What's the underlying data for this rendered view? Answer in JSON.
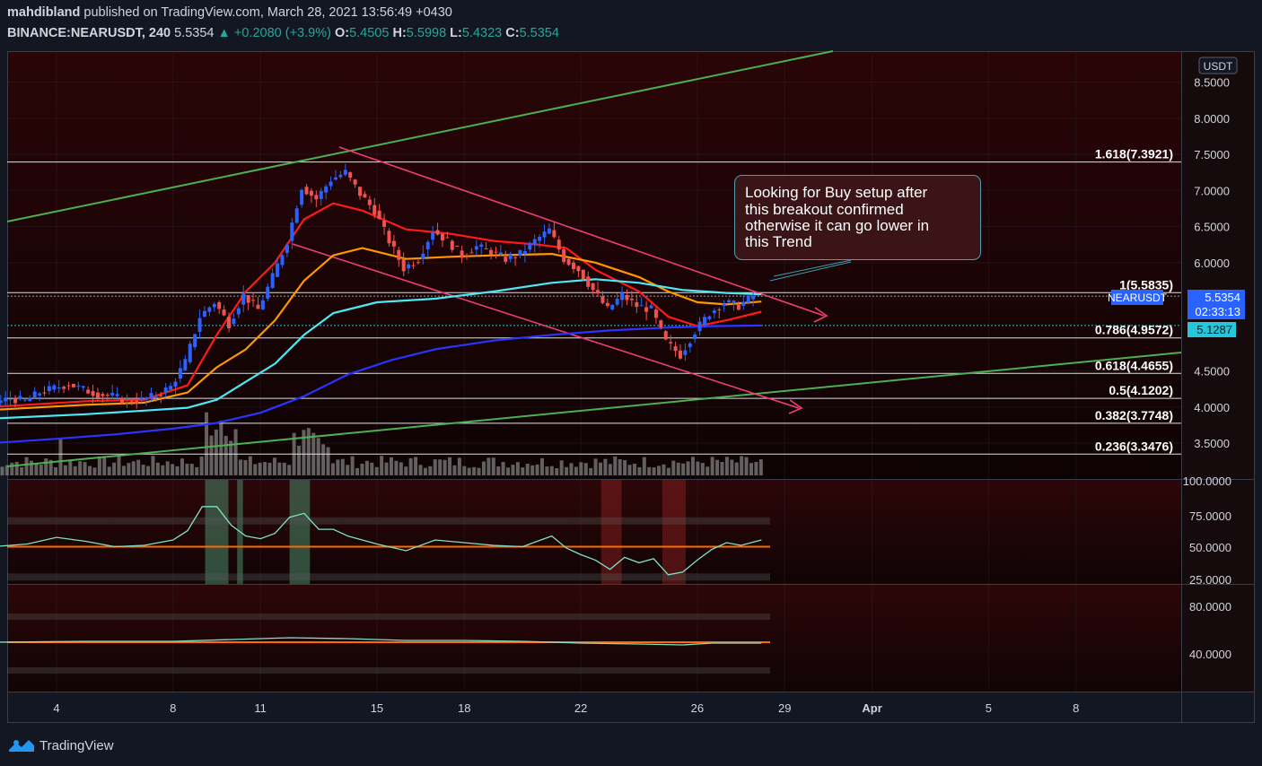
{
  "header": {
    "author": "mahdibland",
    "published_text": "published on TradingView.com, March 28, 2021 13:56:49 +0430",
    "symbol": "BINANCE:NEARUSDT, 240",
    "last": "5.5354",
    "change": "+0.2080 (+3.9%)",
    "o_label": "O:",
    "o": "5.4505",
    "h_label": "H:",
    "h": "5.5998",
    "l_label": "L:",
    "l": "5.4323",
    "c_label": "C:",
    "c": "5.5354"
  },
  "footer": {
    "brand": "TradingView"
  },
  "colors": {
    "background": "#131722",
    "price_pane_bg": "#2a0a0c",
    "up_candle": "#2962ff",
    "down_candle": "#ef5350",
    "ema_red": "#ff1a1a",
    "ema_orange": "#ff9800",
    "ema_cyan": "#4de8f5",
    "ema_blue": "#2b33ff",
    "trendline_green": "#4caf50",
    "channel_pink": "#f23b7a",
    "rsi_line": "#80e0c8",
    "mid_line": "#ff6a00"
  },
  "annotation": {
    "text_lines": [
      "Looking for Buy setup after",
      "this breakout confirmed",
      "otherwise it can go lower in",
      "this Trend"
    ]
  },
  "chart_data": {
    "type": "candlestick",
    "symbol": "NEARUSDT",
    "interval": "240",
    "price_axis": {
      "unit": "USDT",
      "ylim": [
        3.2,
        8.85
      ],
      "ticks": [
        "8.5000",
        "8.0000",
        "7.5000",
        "7.0000",
        "6.5000",
        "6.0000",
        "4.5000",
        "4.0000",
        "3.5000"
      ],
      "tick_values": [
        8.5,
        8.0,
        7.5,
        7.0,
        6.5,
        6.0,
        4.5,
        4.0,
        3.5
      ]
    },
    "x_axis": {
      "ticks": [
        "4",
        "8",
        "11",
        "15",
        "18",
        "22",
        "26",
        "29",
        "Apr",
        "5",
        "8"
      ],
      "tick_days": [
        4,
        8,
        11,
        15,
        18,
        22,
        26,
        29,
        32,
        36,
        39
      ]
    },
    "price_labels": [
      {
        "text": "NEARUSDT",
        "value": "5.5354",
        "countdown": "02:33:13",
        "price": 5.5354
      },
      {
        "text": "5.1287",
        "price": 5.1287
      }
    ],
    "fibonacci": [
      {
        "label": "1.618(7.3921)",
        "price": 7.3921
      },
      {
        "label": "1(5.5835)",
        "price": 5.5835
      },
      {
        "label": "0.786(4.9572)",
        "price": 4.9572
      },
      {
        "label": "0.618(4.4655)",
        "price": 4.4655
      },
      {
        "label": "0.5(4.1202)",
        "price": 4.1202
      },
      {
        "label": "0.382(3.7748)",
        "price": 3.7748
      },
      {
        "label": "0.236(3.3476)",
        "price": 3.3476
      }
    ],
    "candles": [
      {
        "day": 2.0,
        "close": 4.06
      },
      {
        "day": 2.5,
        "close": 4.12
      },
      {
        "day": 3.0,
        "close": 4.08
      },
      {
        "day": 3.5,
        "close": 4.2
      },
      {
        "day": 4.0,
        "close": 4.26
      },
      {
        "day": 4.5,
        "close": 4.32
      },
      {
        "day": 5.0,
        "close": 4.24
      },
      {
        "day": 5.5,
        "close": 4.18
      },
      {
        "day": 6.0,
        "close": 4.15
      },
      {
        "day": 6.5,
        "close": 4.08
      },
      {
        "day": 7.0,
        "close": 4.1
      },
      {
        "day": 7.5,
        "close": 4.16
      },
      {
        "day": 8.0,
        "close": 4.28
      },
      {
        "day": 8.5,
        "close": 4.62
      },
      {
        "day": 9.0,
        "close": 5.25
      },
      {
        "day": 9.5,
        "close": 5.45
      },
      {
        "day": 10.0,
        "close": 5.15
      },
      {
        "day": 10.5,
        "close": 5.55
      },
      {
        "day": 11.0,
        "close": 5.35
      },
      {
        "day": 11.5,
        "close": 5.8
      },
      {
        "day": 12.0,
        "close": 6.3
      },
      {
        "day": 12.5,
        "close": 7.05
      },
      {
        "day": 13.0,
        "close": 6.88
      },
      {
        "day": 13.5,
        "close": 7.15
      },
      {
        "day": 14.0,
        "close": 7.25
      },
      {
        "day": 14.5,
        "close": 6.95
      },
      {
        "day": 15.0,
        "close": 6.72
      },
      {
        "day": 15.5,
        "close": 6.3
      },
      {
        "day": 16.0,
        "close": 5.92
      },
      {
        "day": 16.5,
        "close": 6.05
      },
      {
        "day": 17.0,
        "close": 6.45
      },
      {
        "day": 17.5,
        "close": 6.3
      },
      {
        "day": 18.0,
        "close": 6.1
      },
      {
        "day": 18.5,
        "close": 6.22
      },
      {
        "day": 19.0,
        "close": 6.15
      },
      {
        "day": 19.5,
        "close": 6.05
      },
      {
        "day": 20.0,
        "close": 6.12
      },
      {
        "day": 20.5,
        "close": 6.3
      },
      {
        "day": 21.0,
        "close": 6.45
      },
      {
        "day": 21.5,
        "close": 6.05
      },
      {
        "day": 22.0,
        "close": 5.9
      },
      {
        "day": 22.5,
        "close": 5.62
      },
      {
        "day": 23.0,
        "close": 5.35
      },
      {
        "day": 23.5,
        "close": 5.55
      },
      {
        "day": 24.0,
        "close": 5.4
      },
      {
        "day": 24.5,
        "close": 5.35
      },
      {
        "day": 25.0,
        "close": 4.9
      },
      {
        "day": 25.5,
        "close": 4.72
      },
      {
        "day": 26.0,
        "close": 5.05
      },
      {
        "day": 26.5,
        "close": 5.3
      },
      {
        "day": 27.0,
        "close": 5.45
      },
      {
        "day": 27.5,
        "close": 5.4
      },
      {
        "day": 28.0,
        "close": 5.5354
      }
    ],
    "moving_averages": [
      {
        "color": "ema_red",
        "points": [
          [
            1.8,
            4.0
          ],
          [
            5,
            4.08
          ],
          [
            7,
            4.1
          ],
          [
            8.5,
            4.3
          ],
          [
            9.5,
            5.0
          ],
          [
            10.5,
            5.6
          ],
          [
            11.5,
            6.0
          ],
          [
            12.5,
            6.6
          ],
          [
            13.5,
            6.82
          ],
          [
            14.5,
            6.72
          ],
          [
            16,
            6.46
          ],
          [
            17.5,
            6.4
          ],
          [
            19,
            6.3
          ],
          [
            20.5,
            6.25
          ],
          [
            21.5,
            6.2
          ],
          [
            22.5,
            5.9
          ],
          [
            24,
            5.6
          ],
          [
            25,
            5.25
          ],
          [
            26,
            5.12
          ],
          [
            27,
            5.2
          ],
          [
            28.2,
            5.32
          ]
        ]
      },
      {
        "color": "ema_orange",
        "points": [
          [
            1.8,
            3.96
          ],
          [
            5,
            4.03
          ],
          [
            7,
            4.06
          ],
          [
            8.5,
            4.2
          ],
          [
            9.5,
            4.55
          ],
          [
            10.5,
            4.8
          ],
          [
            11.5,
            5.2
          ],
          [
            12.5,
            5.75
          ],
          [
            13.5,
            6.1
          ],
          [
            14.5,
            6.2
          ],
          [
            16,
            6.05
          ],
          [
            17.5,
            6.08
          ],
          [
            19,
            6.1
          ],
          [
            21,
            6.12
          ],
          [
            22.5,
            6.0
          ],
          [
            24,
            5.8
          ],
          [
            25,
            5.6
          ],
          [
            26,
            5.45
          ],
          [
            27,
            5.42
          ],
          [
            28.2,
            5.46
          ]
        ]
      },
      {
        "color": "ema_cyan",
        "points": [
          [
            1.8,
            3.84
          ],
          [
            5,
            3.9
          ],
          [
            7,
            3.95
          ],
          [
            8.5,
            3.99
          ],
          [
            9.5,
            4.1
          ],
          [
            10.5,
            4.35
          ],
          [
            11.5,
            4.6
          ],
          [
            12.5,
            5.0
          ],
          [
            13.5,
            5.3
          ],
          [
            15,
            5.45
          ],
          [
            17,
            5.5
          ],
          [
            19,
            5.6
          ],
          [
            21,
            5.72
          ],
          [
            22.5,
            5.77
          ],
          [
            24,
            5.72
          ],
          [
            25.5,
            5.62
          ],
          [
            27,
            5.58
          ],
          [
            28.2,
            5.56
          ]
        ]
      },
      {
        "color": "ema_blue",
        "points": [
          [
            1.8,
            3.5
          ],
          [
            4,
            3.56
          ],
          [
            6,
            3.62
          ],
          [
            8,
            3.7
          ],
          [
            9.5,
            3.78
          ],
          [
            11,
            3.92
          ],
          [
            12.5,
            4.15
          ],
          [
            14,
            4.45
          ],
          [
            15.5,
            4.65
          ],
          [
            17,
            4.8
          ],
          [
            19,
            4.92
          ],
          [
            21,
            5.0
          ],
          [
            23,
            5.06
          ],
          [
            25,
            5.1
          ],
          [
            26.5,
            5.12
          ],
          [
            28.2,
            5.1287
          ]
        ]
      }
    ],
    "oscillator_1": {
      "ticks": [
        "100.0000",
        "75.0000",
        "50.0000",
        "25.0000"
      ],
      "tick_values": [
        100,
        75,
        50,
        25
      ],
      "bands": [
        30,
        50,
        70
      ],
      "values": [
        [
          1.8,
          50
        ],
        [
          3,
          52
        ],
        [
          4,
          57
        ],
        [
          5,
          54
        ],
        [
          6,
          50
        ],
        [
          7,
          51
        ],
        [
          8,
          55
        ],
        [
          8.5,
          62
        ],
        [
          9,
          80
        ],
        [
          9.5,
          80
        ],
        [
          10,
          66
        ],
        [
          10.5,
          58
        ],
        [
          11,
          56
        ],
        [
          11.5,
          60
        ],
        [
          12,
          72
        ],
        [
          12.5,
          75
        ],
        [
          13,
          63
        ],
        [
          13.5,
          63
        ],
        [
          14,
          58
        ],
        [
          15,
          52
        ],
        [
          16,
          47
        ],
        [
          17,
          55
        ],
        [
          18,
          53
        ],
        [
          19,
          51
        ],
        [
          20,
          50
        ],
        [
          20.5,
          54
        ],
        [
          21,
          58
        ],
        [
          21.5,
          49
        ],
        [
          22,
          44
        ],
        [
          22.5,
          40
        ],
        [
          23,
          33
        ],
        [
          23.5,
          42
        ],
        [
          24,
          38
        ],
        [
          24.5,
          41
        ],
        [
          25,
          29
        ],
        [
          25.5,
          31
        ],
        [
          26,
          40
        ],
        [
          26.5,
          48
        ],
        [
          27,
          53
        ],
        [
          27.5,
          51
        ],
        [
          28.2,
          55
        ]
      ]
    },
    "oscillator_2": {
      "ticks": [
        "80.0000",
        "40.0000"
      ],
      "tick_values": [
        80,
        40
      ],
      "bands": [
        30,
        50,
        70
      ],
      "values": [
        [
          1.8,
          50
        ],
        [
          5,
          51
        ],
        [
          8,
          51
        ],
        [
          10,
          53
        ],
        [
          12,
          55
        ],
        [
          14,
          54
        ],
        [
          16,
          52
        ],
        [
          18,
          52
        ],
        [
          20,
          51
        ],
        [
          22,
          49
        ],
        [
          24,
          48
        ],
        [
          25.5,
          47
        ],
        [
          26.5,
          49
        ],
        [
          28.2,
          49
        ]
      ]
    },
    "annotations": [
      "descending channel",
      "ascending green trendlines",
      "breakout arrows"
    ]
  }
}
